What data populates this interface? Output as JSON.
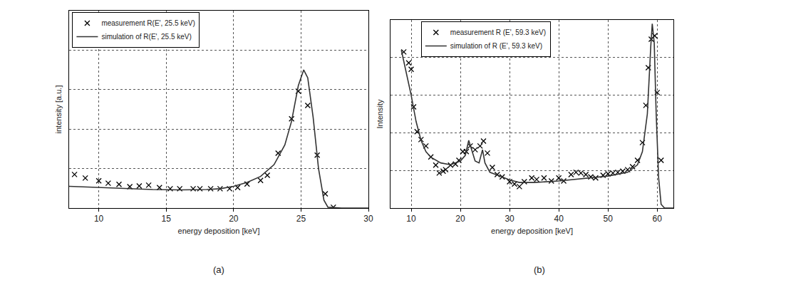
{
  "chart_data": [
    {
      "type": "line",
      "x_label": "energy deposition [keV]",
      "y_label": "intensity [a.u.]",
      "annotations": [
        "(a)"
      ],
      "xlim": [
        7.8,
        30
      ],
      "xticks": [
        10,
        15,
        20,
        25,
        30
      ],
      "ylim": [
        0,
        5
      ],
      "yticks": [
        0,
        1,
        2,
        3,
        4,
        5
      ],
      "grid": true,
      "tick_labels": "x",
      "legend": "upper left",
      "series": [
        {
          "name": "measurement R(E', 25.5 keV)",
          "type": "scatter",
          "marker": "x",
          "color": "#000000",
          "x": [
            8.2,
            9,
            10,
            10.7,
            11.5,
            12.3,
            13,
            13.7,
            14.5,
            15.3,
            16,
            17,
            17.5,
            18.3,
            19,
            19.7,
            20.3,
            21,
            22,
            22.5,
            23.3,
            24.3,
            24.8,
            25.5,
            26.2,
            26.8,
            27.4
          ],
          "values": [
            0.85,
            0.76,
            0.69,
            0.63,
            0.6,
            0.54,
            0.56,
            0.58,
            0.52,
            0.49,
            0.49,
            0.49,
            0.49,
            0.49,
            0.49,
            0.49,
            0.52,
            0.61,
            0.7,
            0.83,
            1.39,
            2.26,
            2.96,
            2.6,
            1.34,
            0.36,
            0.02
          ]
        },
        {
          "name": "simulation of R(E', 25.5 keV)",
          "type": "line",
          "line_style": "solid",
          "color": "#333333",
          "x": [
            7.8,
            10,
            12,
            14,
            16,
            18,
            19,
            20,
            21,
            22,
            23,
            23.8,
            24.3,
            24.8,
            25.2,
            25.5,
            25.9,
            26.3,
            26.7,
            27,
            28,
            30
          ],
          "values": [
            0.55,
            0.52,
            0.49,
            0.47,
            0.46,
            0.47,
            0.49,
            0.55,
            0.65,
            0.8,
            1.1,
            1.6,
            2.2,
            3.1,
            3.5,
            3.3,
            2.3,
            1.0,
            0.2,
            0.02,
            0,
            0
          ]
        }
      ]
    },
    {
      "type": "line",
      "x_label": "energy deposition [keV]",
      "y_label": "Intensity",
      "annotations": [
        "(b)"
      ],
      "xlim": [
        5.8,
        63.3
      ],
      "xticks": [
        10,
        20,
        30,
        40,
        50,
        60
      ],
      "ylim": [
        0,
        5
      ],
      "yticks": [
        0,
        1,
        2,
        3,
        4,
        5
      ],
      "grid": true,
      "tick_labels": "x",
      "legend": "upper left",
      "series": [
        {
          "name": "measurement R (E', 59.3 keV)",
          "type": "scatter",
          "marker": "x",
          "color": "#000000",
          "x": [
            8.5,
            9.5,
            10,
            10.5,
            11.2,
            12,
            13,
            14,
            15,
            15.7,
            16.5,
            17,
            18,
            19,
            19.7,
            20.5,
            21.2,
            22,
            23,
            24,
            24.7,
            25.5,
            26.5,
            27.5,
            28.5,
            30,
            31,
            32,
            33,
            34.5,
            35.5,
            37,
            38.5,
            40,
            41,
            42.5,
            43.5,
            44.5,
            45.5,
            46.5,
            47.5,
            49,
            50,
            51,
            52,
            53,
            54,
            55,
            56,
            57,
            57.7,
            58.2,
            58.8,
            59.5,
            60,
            60.8
          ],
          "values": [
            4.15,
            3.86,
            3.69,
            2.69,
            2.03,
            1.82,
            1.65,
            1.36,
            1.14,
            0.93,
            0.98,
            1.02,
            1.14,
            1.17,
            1.27,
            1.5,
            1.5,
            1.65,
            1.55,
            1.65,
            1.78,
            1.46,
            1.08,
            0.89,
            0.83,
            0.7,
            0.64,
            0.57,
            0.7,
            0.8,
            0.76,
            0.8,
            0.72,
            0.8,
            0.72,
            0.89,
            0.95,
            0.93,
            0.89,
            0.83,
            0.8,
            0.87,
            0.91,
            0.93,
            0.95,
            0.98,
            1.02,
            1.1,
            1.27,
            1.74,
            2.73,
            3.73,
            4.49,
            4.58,
            3.07,
            1.27
          ]
        },
        {
          "name": "simulation of R (E', 59.3 keV)",
          "type": "line",
          "line_style": "solid",
          "color": "#333333",
          "x": [
            8,
            9,
            10,
            11,
            12,
            13,
            14,
            16,
            18,
            20,
            21,
            21.7,
            22.2,
            23,
            23.8,
            24.5,
            25,
            26,
            28,
            30,
            32,
            35,
            40,
            45,
            50,
            54,
            56,
            57,
            58,
            58.7,
            59,
            59.4,
            59.8,
            60.3,
            60.8,
            61.5,
            63.3
          ],
          "values": [
            4.2,
            3.6,
            3.0,
            2.3,
            1.8,
            1.5,
            1.35,
            1.2,
            1.15,
            1.25,
            1.4,
            1.8,
            1.6,
            1.25,
            1.2,
            1.55,
            1.2,
            0.95,
            0.85,
            0.75,
            0.68,
            0.68,
            0.72,
            0.78,
            0.85,
            0.95,
            1.15,
            1.5,
            2.5,
            4.3,
            4.9,
            4.4,
            2.5,
            0.8,
            0.1,
            0,
            0
          ]
        }
      ]
    }
  ]
}
